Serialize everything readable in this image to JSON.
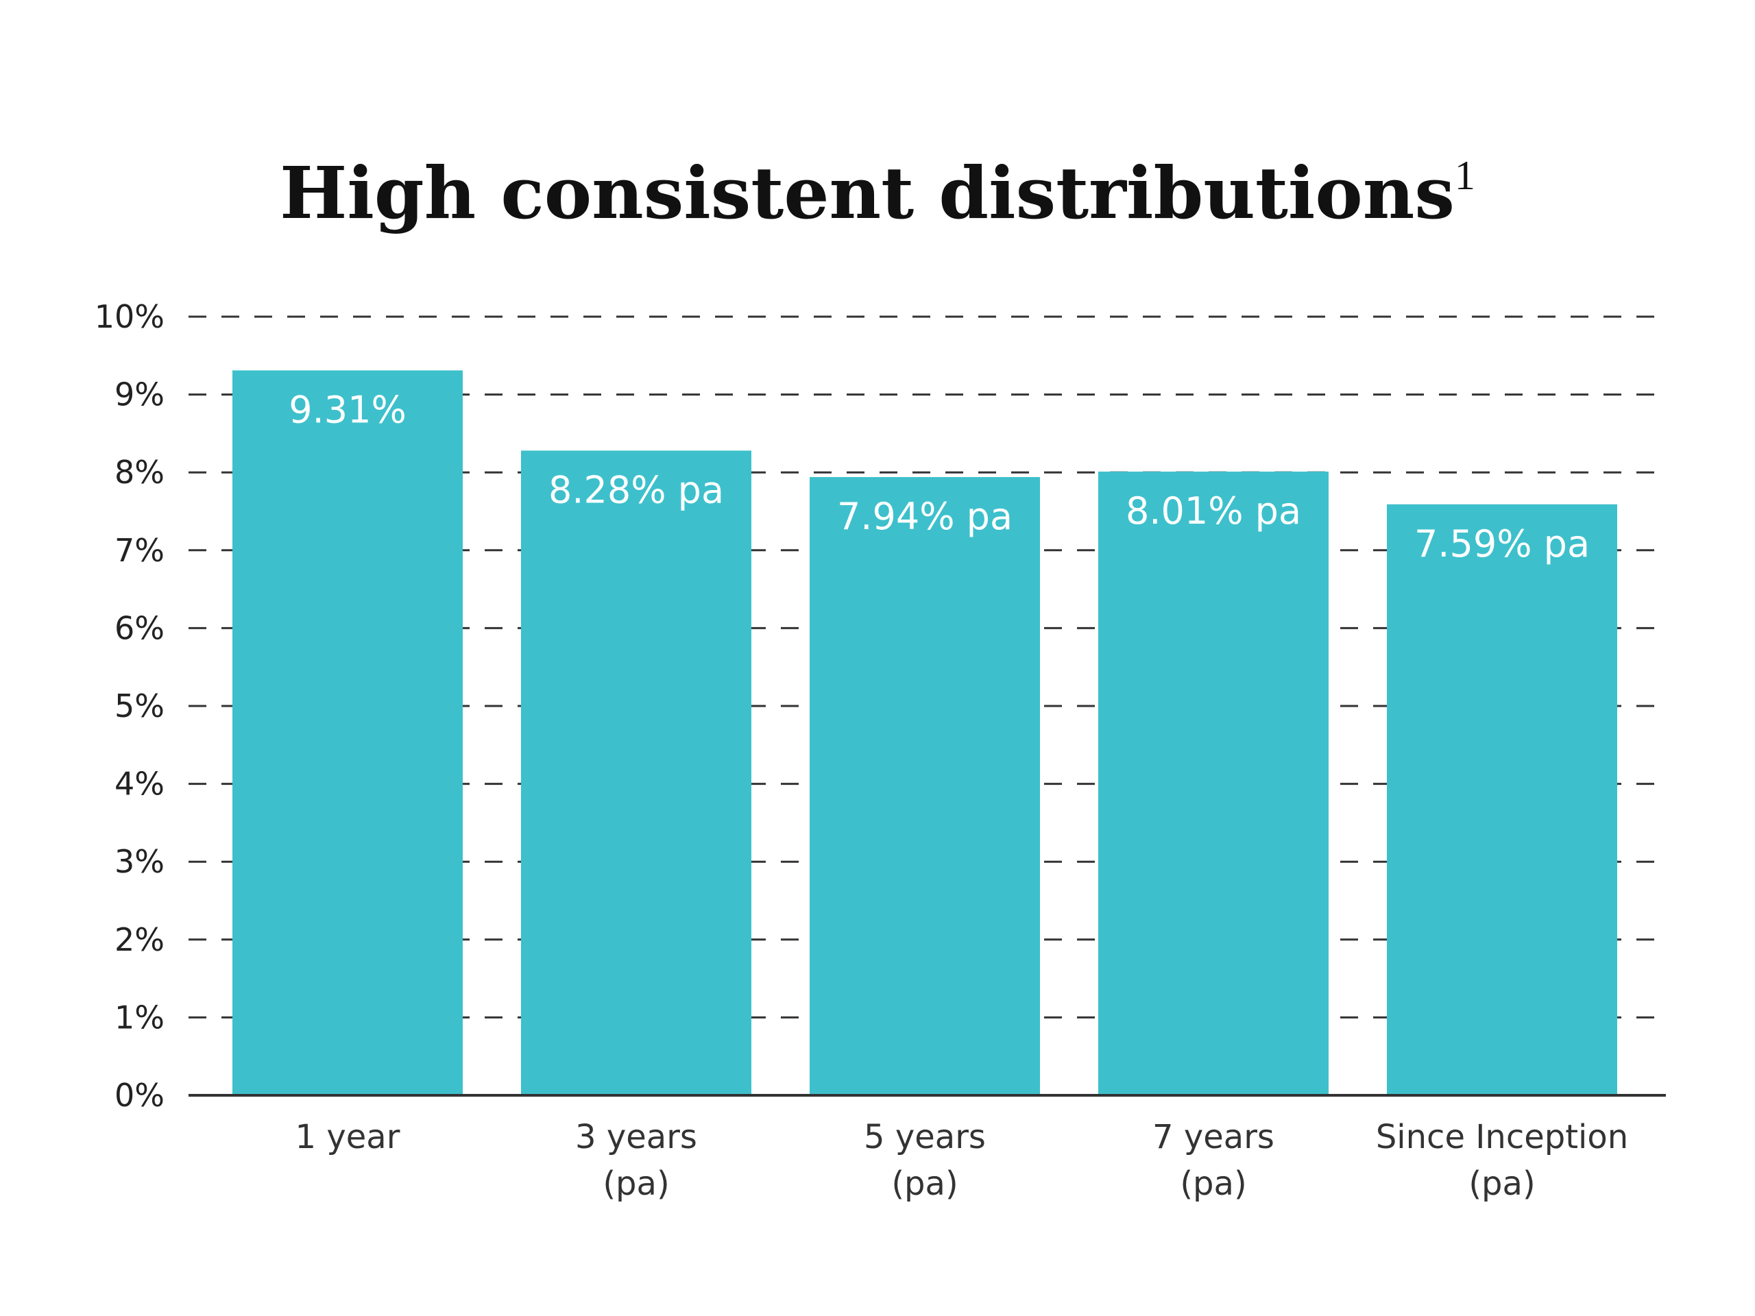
{
  "chart_data": {
    "type": "bar",
    "title": "High consistent distributions",
    "title_superscript": "1",
    "xlabel": "",
    "ylabel": "",
    "ylim": [
      0,
      10
    ],
    "y_ticks": [
      "0%",
      "1%",
      "2%",
      "3%",
      "4%",
      "5%",
      "6%",
      "7%",
      "8%",
      "9%",
      "10%"
    ],
    "grid": "dashed horizontal",
    "categories": [
      [
        "1 year"
      ],
      [
        "3 years",
        "(pa)"
      ],
      [
        "5 years",
        "(pa)"
      ],
      [
        "7 years",
        "(pa)"
      ],
      [
        "Since Inception",
        "(pa)"
      ]
    ],
    "values": [
      9.31,
      8.28,
      7.94,
      8.01,
      7.59
    ],
    "data_labels": [
      "9.31%",
      "8.28% pa",
      "7.94% pa",
      "8.01% pa",
      "7.59% pa"
    ],
    "bar_color": "#3dc0cc",
    "grid_color": "#333333"
  }
}
